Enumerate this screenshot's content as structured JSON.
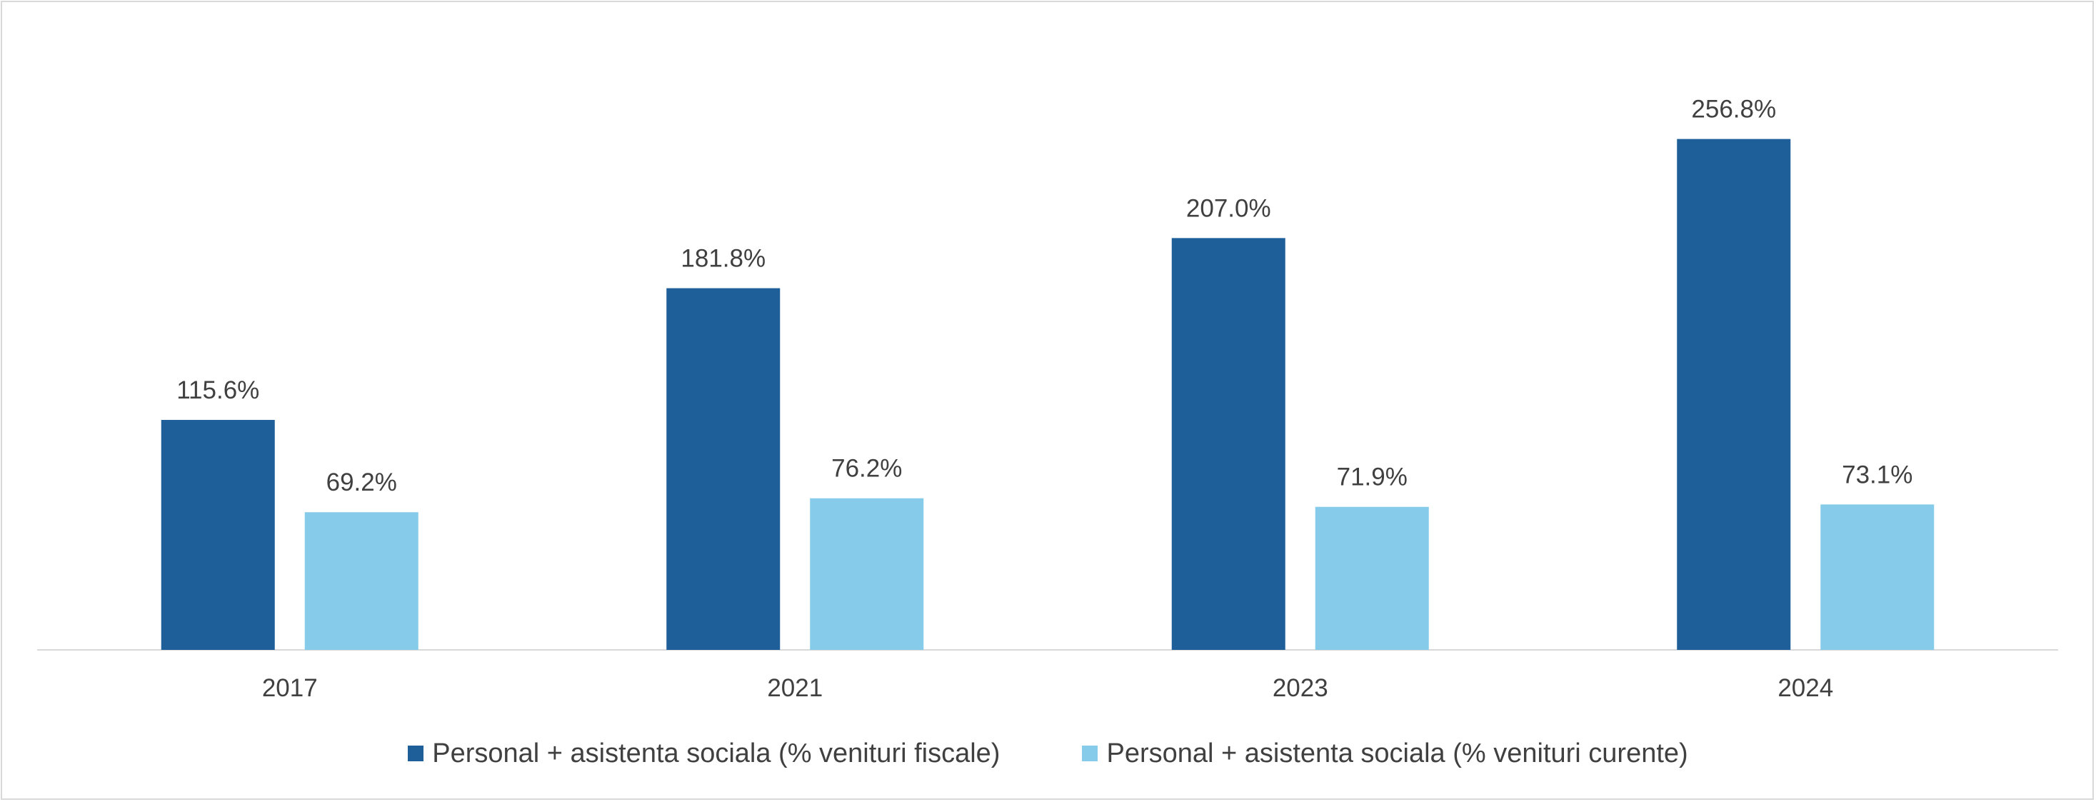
{
  "chart_data": {
    "type": "bar",
    "categories": [
      "2017",
      "2021",
      "2023",
      "2024"
    ],
    "series": [
      {
        "name": "Personal + asistenta sociala (% venituri fiscale)",
        "values": [
          115.6,
          181.8,
          207.0,
          256.8
        ],
        "labels": [
          "115.6%",
          "181.8%",
          "207.0%",
          "256.8%"
        ],
        "color": "#1f5f99"
      },
      {
        "name": "Personal + asistenta sociala (% venituri curente)",
        "values": [
          69.2,
          76.2,
          71.9,
          73.1
        ],
        "labels": [
          "69.2%",
          "76.2%",
          "71.9%",
          "73.1%"
        ],
        "color": "#86cbea"
      }
    ],
    "ylim": [
      0,
      280
    ],
    "grid": false,
    "legend_position": "bottom",
    "axis_color": "#d9d9d9"
  }
}
